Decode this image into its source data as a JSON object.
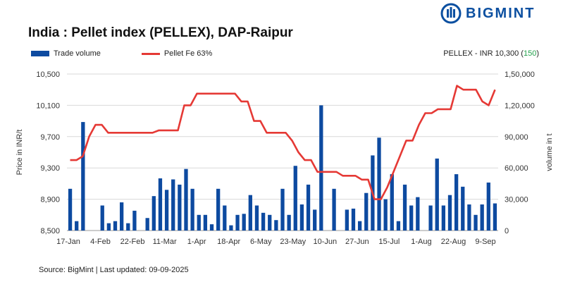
{
  "brand": {
    "name": "BIGMINT"
  },
  "title": "India : Pellet index (PELLEX), DAP-Raipur",
  "pellex_label": "PELLEX - INR 10,300",
  "pellex_change": "150",
  "source": "Source: BigMint | Last updated: 09-09-2025",
  "colors": {
    "bar": "#0d4aa0",
    "line": "#e53935",
    "change": "#22a04b",
    "brand": "#0b4fa0"
  },
  "chart_data": {
    "type": "bar+line",
    "title": "India : Pellet index (PELLEX), DAP-Raipur",
    "ylabel_left": "Price in INR/t",
    "ylabel_right": "volume in t",
    "ylim_left": [
      8500,
      10500
    ],
    "ylim_right": [
      0,
      150000
    ],
    "yticks_left": [
      "10,500",
      "10,100",
      "9,700",
      "9,300",
      "8,900",
      "8,500"
    ],
    "yticks_right": [
      "1,50,000",
      "1,20,000",
      "90,000",
      "60,000",
      "30,000",
      "0"
    ],
    "xticks": [
      "17-Jan",
      "4-Feb",
      "22-Feb",
      "11-Mar",
      "1-Apr",
      "18-Apr",
      "6-May",
      "23-May",
      "10-Jun",
      "27-Jun",
      "15-Jul",
      "1-Aug",
      "22-Aug",
      "9-Sep"
    ],
    "legend": "top-left",
    "grid": true,
    "series": [
      {
        "name": "Trade volume",
        "kind": "bar",
        "axis": "right",
        "values": [
          40000,
          9000,
          104000,
          0,
          0,
          24000,
          7000,
          9000,
          27000,
          7000,
          19000,
          0,
          12000,
          33000,
          50000,
          39000,
          49000,
          44000,
          59000,
          40000,
          15000,
          15000,
          6000,
          40000,
          24000,
          5000,
          15000,
          16000,
          34000,
          24000,
          17000,
          15000,
          10000,
          40000,
          15000,
          62000,
          25000,
          44000,
          20000,
          120000,
          0,
          40000,
          0,
          20000,
          21000,
          9000,
          36000,
          72000,
          89000,
          30000,
          54000,
          9000,
          44000,
          24000,
          32000,
          0,
          24000,
          69000,
          24000,
          34000,
          54000,
          42000,
          25000,
          15000,
          25000,
          46000,
          26000
        ]
      },
      {
        "name": "Pellet Fe 63%",
        "kind": "line",
        "axis": "left",
        "values": [
          9400,
          9400,
          9450,
          9700,
          9850,
          9850,
          9750,
          9750,
          9750,
          9750,
          9750,
          9750,
          9750,
          9750,
          9780,
          9780,
          9780,
          9780,
          10100,
          10100,
          10250,
          10250,
          10250,
          10250,
          10250,
          10250,
          10250,
          10150,
          10150,
          9900,
          9900,
          9750,
          9750,
          9750,
          9750,
          9650,
          9500,
          9400,
          9400,
          9250,
          9250,
          9250,
          9250,
          9200,
          9200,
          9200,
          9150,
          9150,
          8900,
          8900,
          9050,
          9250,
          9450,
          9650,
          9650,
          9850,
          10000,
          10000,
          10050,
          10050,
          10050,
          10350,
          10300,
          10300,
          10300,
          10150,
          10100,
          10300
        ]
      }
    ]
  }
}
